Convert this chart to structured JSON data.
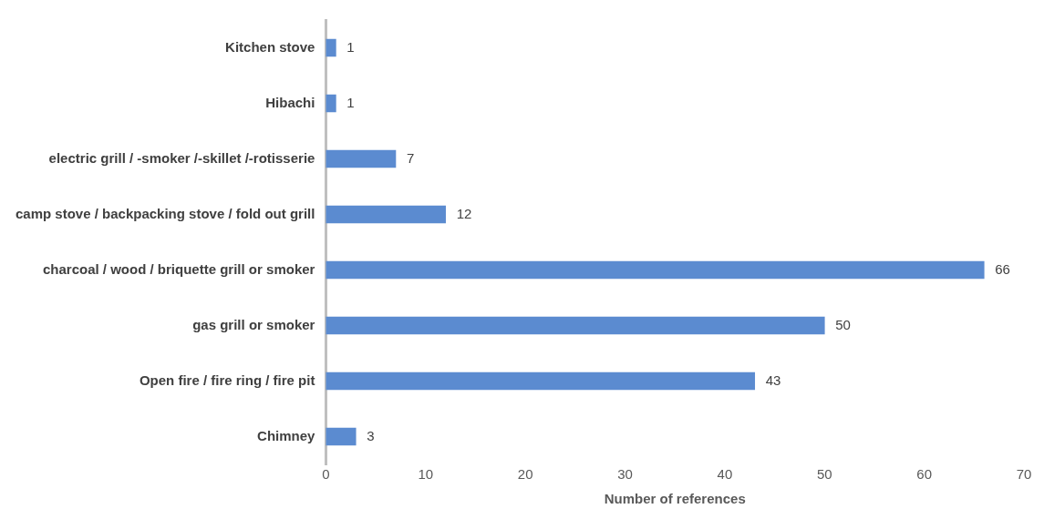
{
  "chart_data": {
    "type": "bar",
    "orientation": "horizontal",
    "xlabel": "Number of references",
    "categories": [
      "Kitchen stove",
      "Hibachi",
      "electric grill / -smoker /-skillet /-rotisserie",
      "camp stove / backpacking stove / fold out grill",
      "charcoal / wood / briquette grill or smoker",
      "gas grill or smoker",
      "Open fire / fire ring / fire pit",
      "Chimney"
    ],
    "values": [
      1,
      1,
      7,
      12,
      66,
      50,
      43,
      3
    ],
    "color": "#5b8bd0",
    "xlim": [
      0,
      70
    ],
    "xticks": [
      0,
      10,
      20,
      30,
      40,
      50,
      60,
      70
    ],
    "grid": false,
    "legend": false,
    "data_labels": true
  }
}
